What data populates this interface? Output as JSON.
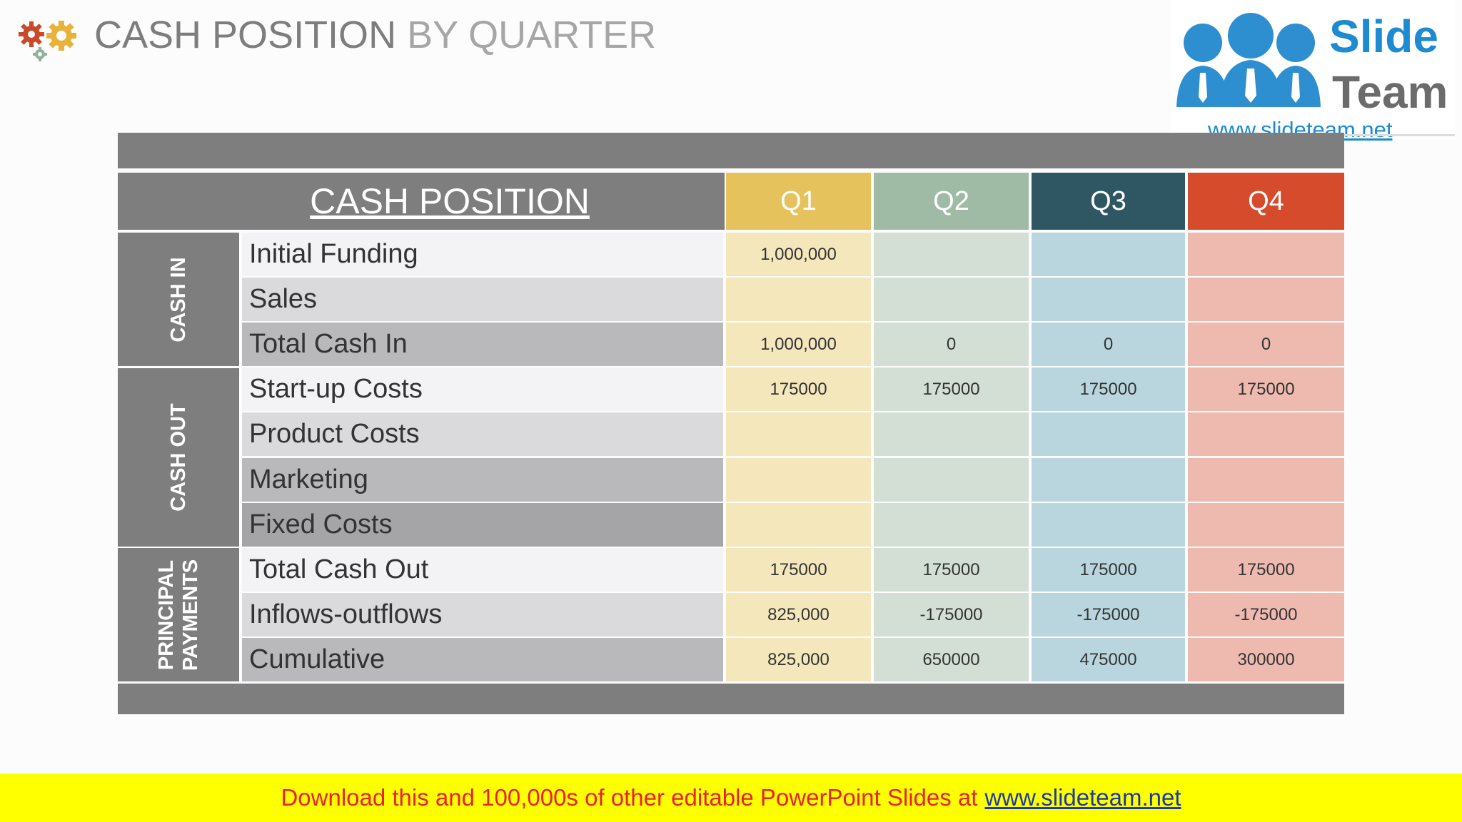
{
  "title": {
    "part1": "CASH POSITION",
    "part2": "BY QUARTER"
  },
  "logo": {
    "word1": "Slide",
    "word2": "Team",
    "url": "www.slideteam.net"
  },
  "table": {
    "header": "CASH POSITION",
    "quarters": [
      {
        "label": "Q1",
        "head_color": "#e6c25c",
        "cell_color": "#f5e7bc"
      },
      {
        "label": "Q2",
        "head_color": "#9fbba6",
        "cell_color": "#d3dfd4"
      },
      {
        "label": "Q3",
        "head_color": "#2f5763",
        "cell_color": "#b9d6df"
      },
      {
        "label": "Q4",
        "head_color": "#d64b2b",
        "cell_color": "#eebab0"
      }
    ],
    "groups": [
      "CASH IN",
      "CASH OUT",
      "PRINCIPAL\nPAYMENTS"
    ],
    "rows": [
      {
        "label": "Initial Funding",
        "values": [
          "1,000,000",
          "",
          "",
          ""
        ]
      },
      {
        "label": "Sales",
        "values": [
          "",
          "",
          "",
          ""
        ]
      },
      {
        "label": "Total Cash In",
        "values": [
          "1,000,000",
          "0",
          "0",
          "0"
        ]
      },
      {
        "label": "Start-up Costs",
        "values": [
          "175000",
          "175000",
          "175000",
          "175000"
        ]
      },
      {
        "label": "Product Costs",
        "values": [
          "",
          "",
          "",
          ""
        ]
      },
      {
        "label": "Marketing",
        "values": [
          "",
          "",
          "",
          ""
        ]
      },
      {
        "label": "Fixed Costs",
        "values": [
          "",
          "",
          "",
          ""
        ]
      },
      {
        "label": "Total Cash Out",
        "values": [
          "175000",
          "175000",
          "175000",
          "175000"
        ]
      },
      {
        "label": "Inflows-outflows",
        "values": [
          "825,000",
          "-175000",
          "-175000",
          "-175000"
        ]
      },
      {
        "label": "Cumulative",
        "values": [
          "825,000",
          "650000",
          "475000",
          "300000"
        ]
      }
    ],
    "row_label_colors": [
      "#f3f2f4",
      "#dad9db",
      "#b9b8ba",
      "#f3f2f4",
      "#dad9db",
      "#b9b8ba",
      "#a5a4a6",
      "#f3f2f4",
      "#dad9db",
      "#b9b8ba"
    ]
  },
  "footer": {
    "text": "Download this and 100,000s of other editable PowerPoint Slides at",
    "link": "www.slideteam.net"
  }
}
